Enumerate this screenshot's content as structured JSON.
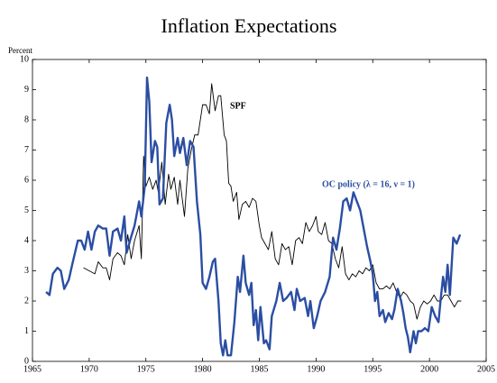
{
  "chart_data": {
    "type": "line",
    "title": "Inflation Expectations",
    "y_label": "Percent",
    "xlim": [
      1965,
      2005
    ],
    "xticks": [
      1965,
      1970,
      1975,
      1980,
      1985,
      1990,
      1995,
      2000,
      2005
    ],
    "ylim": [
      0,
      10
    ],
    "yticks": [
      0,
      1,
      2,
      3,
      4,
      5,
      6,
      7,
      8,
      9,
      10
    ],
    "grid": false,
    "series": [
      {
        "name": "SPF",
        "color": "#000000",
        "x": [
          1969.5,
          1970,
          1970.5,
          1970.8,
          1971.2,
          1971.5,
          1971.8,
          1972.1,
          1972.5,
          1972.8,
          1973.1,
          1973.4,
          1973.7,
          1974,
          1974.4,
          1974.6,
          1974.8,
          1975,
          1975.3,
          1975.6,
          1975.9,
          1976.1,
          1976.4,
          1976.7,
          1977,
          1977.2,
          1977.5,
          1977.8,
          1978,
          1978.4,
          1978.7,
          1979,
          1979.3,
          1979.6,
          1980,
          1980.3,
          1980.6,
          1980.8,
          1981.1,
          1981.4,
          1981.6,
          1981.9,
          1982.1,
          1982.3,
          1982.5,
          1982.7,
          1983,
          1983.2,
          1983.5,
          1983.8,
          1984.1,
          1984.4,
          1984.7,
          1985,
          1985.2,
          1985.5,
          1985.8,
          1986.1,
          1986.4,
          1986.7,
          1987,
          1987.3,
          1987.6,
          1987.9,
          1988.2,
          1988.5,
          1988.8,
          1989.1,
          1989.4,
          1989.7,
          1990,
          1990.2,
          1990.5,
          1990.8,
          1991.1,
          1991.4,
          1991.7,
          1992,
          1992.3,
          1992.6,
          1992.9,
          1993.2,
          1993.5,
          1993.8,
          1994.1,
          1994.4,
          1994.7,
          1995,
          1995.3,
          1995.6,
          1995.9,
          1996.2,
          1996.5,
          1996.8,
          1997.1,
          1997.4,
          1997.7,
          1998,
          1998.3,
          1998.6,
          1998.9,
          1999.2,
          1999.5,
          1999.8,
          2000.1,
          2000.4,
          2000.7,
          2001,
          2001.3,
          2001.6,
          2001.9,
          2002.2,
          2002.5,
          2002.8
        ],
        "values": [
          3.1,
          3.0,
          2.9,
          3.3,
          3.1,
          3.1,
          2.7,
          3.4,
          3.6,
          3.5,
          3.2,
          4.2,
          3.4,
          4.0,
          4.5,
          3.4,
          6.8,
          5.8,
          6.1,
          5.7,
          6.0,
          5.6,
          6.6,
          5.2,
          6.2,
          5.7,
          6.1,
          5.2,
          6.0,
          4.8,
          6.4,
          7.0,
          7.5,
          7.5,
          8.5,
          8.5,
          8.2,
          9.2,
          8.3,
          8.8,
          8.8,
          7.5,
          7.3,
          5.9,
          5.8,
          5.3,
          5.6,
          4.7,
          5.2,
          5.3,
          5.1,
          5.4,
          5.3,
          4.5,
          4.1,
          3.9,
          3.7,
          4.3,
          3.4,
          3.2,
          3.9,
          3.7,
          3.8,
          3.2,
          4.0,
          4.1,
          3.9,
          4.6,
          4.3,
          4.5,
          4.8,
          4.3,
          4.2,
          4.6,
          4.0,
          3.9,
          3.4,
          3.1,
          3.8,
          2.9,
          2.7,
          2.9,
          2.8,
          3.0,
          2.9,
          3.1,
          3.0,
          3.2,
          2.6,
          2.4,
          2.4,
          2.5,
          2.4,
          2.6,
          2.3,
          2.1,
          2.3,
          2.2,
          2.0,
          1.9,
          1.4,
          1.8,
          2.0,
          1.9,
          2.0,
          2.2,
          2.0,
          2.0,
          2.2,
          2.2,
          2.0,
          1.8,
          2.0,
          2.0
        ]
      },
      {
        "name": "OC policy (λ = 16, ν = 1)",
        "color": "#2b4ea3",
        "x": [
          1966.2,
          1966.5,
          1966.8,
          1967.2,
          1967.5,
          1967.8,
          1968.2,
          1968.5,
          1969,
          1969.3,
          1969.6,
          1969.9,
          1970.2,
          1970.5,
          1970.8,
          1971.2,
          1971.5,
          1971.8,
          1972.1,
          1972.5,
          1972.8,
          1973.1,
          1973.3,
          1973.6,
          1974,
          1974.4,
          1974.6,
          1974.9,
          1975.1,
          1975.3,
          1975.5,
          1975.8,
          1976,
          1976.2,
          1976.5,
          1976.8,
          1977.1,
          1977.3,
          1977.5,
          1977.8,
          1978,
          1978.3,
          1978.6,
          1978.9,
          1979.2,
          1979.5,
          1979.8,
          1980,
          1980.3,
          1980.6,
          1980.9,
          1981.1,
          1981.4,
          1981.6,
          1981.8,
          1982,
          1982.2,
          1982.5,
          1982.8,
          1983.1,
          1983.3,
          1983.6,
          1983.8,
          1984.1,
          1984.3,
          1984.5,
          1984.7,
          1984.9,
          1985.1,
          1985.4,
          1985.6,
          1985.9,
          1986.1,
          1986.5,
          1986.8,
          1987.1,
          1987.4,
          1987.8,
          1988.1,
          1988.3,
          1988.6,
          1989,
          1989.3,
          1989.5,
          1989.8,
          1990.1,
          1990.4,
          1990.8,
          1991.2,
          1991.5,
          1991.8,
          1992.1,
          1992.4,
          1992.7,
          1993,
          1993.3,
          1993.6,
          1993.9,
          1994.2,
          1994.5,
          1994.8,
          1995,
          1995.2,
          1995.4,
          1995.6,
          1995.9,
          1996.1,
          1996.4,
          1996.7,
          1996.9,
          1997.2,
          1997.5,
          1997.7,
          1997.9,
          1998.1,
          1998.3,
          1998.6,
          1998.8,
          1999,
          1999.3,
          1999.6,
          1999.9,
          2000.2,
          2000.5,
          2000.8,
          2001,
          2001.2,
          2001.4,
          2001.6,
          2001.8,
          2002.1,
          2002.4,
          2002.7
        ],
        "values": [
          2.3,
          2.2,
          2.9,
          3.1,
          3.0,
          2.4,
          2.7,
          3.2,
          4.0,
          4.0,
          3.7,
          4.3,
          3.7,
          4.3,
          4.5,
          4.4,
          4.4,
          3.5,
          4.3,
          4.4,
          4.0,
          4.8,
          3.6,
          4.0,
          4.5,
          5.3,
          4.8,
          5.8,
          9.4,
          8.6,
          6.6,
          7.3,
          7.1,
          5.2,
          5.4,
          7.9,
          8.5,
          8.0,
          6.8,
          7.4,
          6.9,
          7.4,
          6.5,
          7.3,
          7.1,
          5.3,
          4.2,
          2.6,
          2.4,
          2.8,
          3.3,
          3.4,
          2.0,
          0.6,
          0.2,
          0.7,
          0.2,
          0.2,
          1.3,
          2.8,
          2.3,
          3.5,
          2.6,
          2.2,
          2.6,
          1.2,
          1.7,
          0.7,
          1.8,
          0.6,
          0.7,
          0.4,
          1.5,
          2.0,
          2.6,
          2.0,
          2.1,
          2.3,
          1.7,
          2.4,
          2.0,
          2.1,
          1.5,
          2.0,
          1.1,
          1.5,
          2.0,
          2.3,
          2.8,
          4.1,
          3.7,
          4.4,
          5.3,
          5.4,
          5.0,
          5.6,
          5.3,
          5.0,
          4.4,
          3.8,
          3.3,
          2.9,
          2.0,
          2.3,
          1.5,
          1.7,
          1.3,
          1.6,
          1.4,
          1.7,
          2.4,
          2.0,
          1.6,
          1.1,
          0.8,
          0.3,
          1.0,
          0.6,
          1.0,
          1.0,
          1.1,
          1.0,
          1.8,
          1.5,
          1.3,
          2.1,
          2.8,
          2.3,
          3.2,
          2.2,
          4.1,
          3.9,
          4.2
        ]
      }
    ]
  }
}
